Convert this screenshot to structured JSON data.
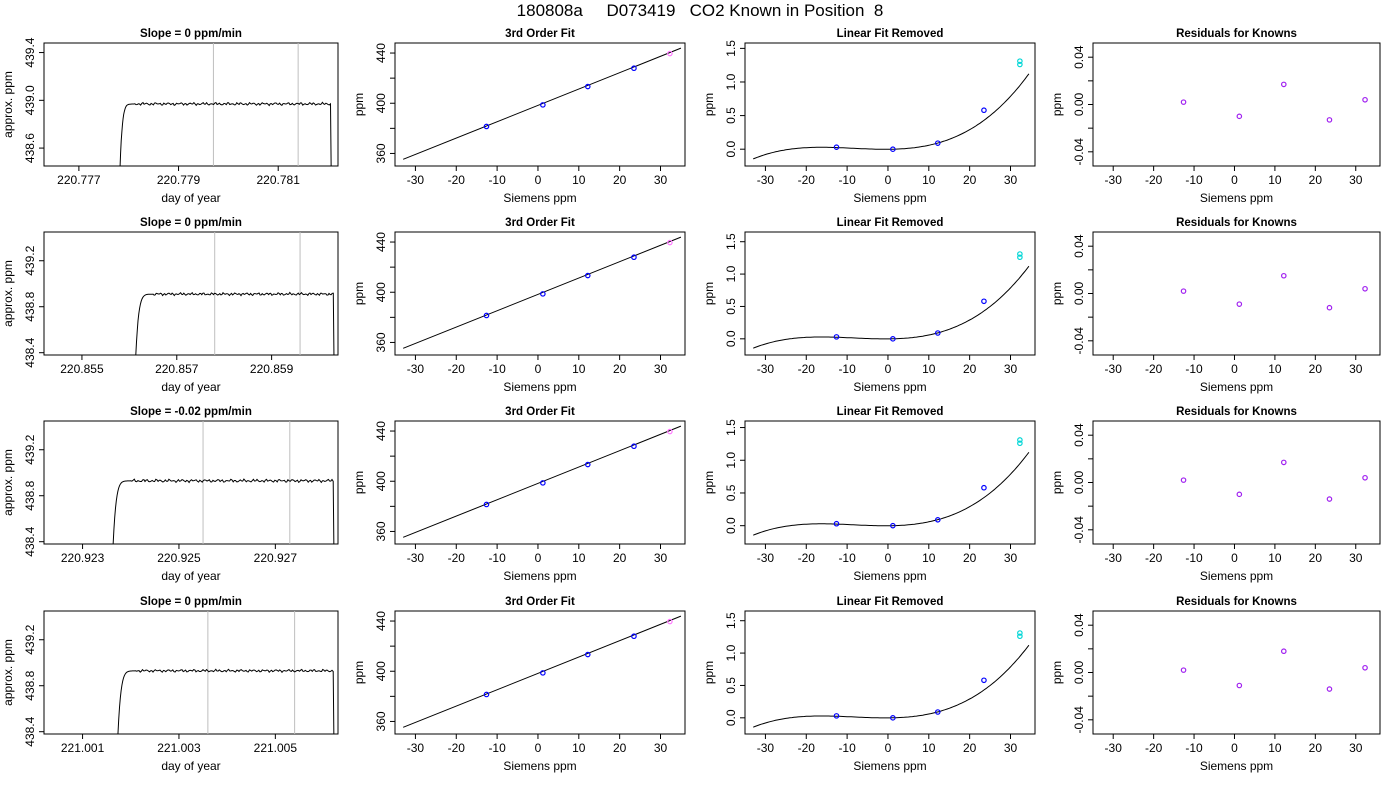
{
  "page": {
    "title": "180808a     D073419   CO2 Known in Position  8"
  },
  "rows": [
    {
      "slope_title": "Slope =  0  ppm/min",
      "raw_xlim": [
        220.7763,
        220.7822
      ],
      "raw_ylim": [
        438.45,
        439.48
      ],
      "raw_xticks": [
        220.777,
        220.779,
        220.781
      ],
      "raw_xticklabels": [
        "220.777",
        "220.779",
        "220.781"
      ],
      "raw_yticks": [
        438.6,
        439.0,
        439.4
      ],
      "raw_yticklabels": [
        "438.6",
        "439.0",
        "439.4"
      ],
      "raw_vlines": [
        220.7797,
        220.7814
      ],
      "trace_start": 220.7778,
      "trace_rise_end": 220.7781,
      "trace_end": 220.78205,
      "trace_level": 438.97,
      "trace_noise": 0.012,
      "lin_ylim": [
        -0.25,
        1.58
      ],
      "lin_yticks": [
        0.0,
        0.5,
        1.0,
        1.5
      ],
      "lin_yticklabels": [
        "0.0",
        "0.5",
        "1.0",
        "1.5"
      ],
      "resid_points": [
        [
          -12.6,
          0.002
        ],
        [
          1.2,
          -0.01
        ],
        [
          12.2,
          0.017
        ],
        [
          23.5,
          -0.013
        ],
        [
          32.3,
          0.004
        ]
      ]
    },
    {
      "slope_title": "Slope =  0  ppm/min",
      "raw_xlim": [
        220.8542,
        220.8604
      ],
      "raw_ylim": [
        438.38,
        439.45
      ],
      "raw_xticks": [
        220.855,
        220.857,
        220.859
      ],
      "raw_xticklabels": [
        "220.855",
        "220.857",
        "220.859"
      ],
      "raw_yticks": [
        438.4,
        438.8,
        439.2
      ],
      "raw_yticklabels": [
        "438.4",
        "438.8",
        "439.2"
      ],
      "raw_vlines": [
        220.8578,
        220.8596
      ],
      "trace_start": 220.8561,
      "trace_rise_end": 220.8565,
      "trace_end": 220.8603,
      "trace_level": 438.91,
      "trace_noise": 0.012,
      "lin_ylim": [
        -0.25,
        1.65
      ],
      "lin_yticks": [
        0.0,
        0.5,
        1.0,
        1.5
      ],
      "lin_yticklabels": [
        "0.0",
        "0.5",
        "1.0",
        "1.5"
      ],
      "resid_points": [
        [
          -12.6,
          0.002
        ],
        [
          1.2,
          -0.009
        ],
        [
          12.2,
          0.015
        ],
        [
          23.5,
          -0.012
        ],
        [
          32.3,
          0.004
        ]
      ]
    },
    {
      "slope_title": "Slope =  -0.02  ppm/min",
      "raw_xlim": [
        220.9222,
        220.9283
      ],
      "raw_ylim": [
        438.38,
        439.45
      ],
      "raw_xticks": [
        220.923,
        220.925,
        220.927
      ],
      "raw_xticklabels": [
        "220.923",
        "220.925",
        "220.927"
      ],
      "raw_yticks": [
        438.4,
        438.8,
        439.2
      ],
      "raw_yticklabels": [
        "438.4",
        "438.8",
        "439.2"
      ],
      "raw_vlines": [
        220.9255,
        220.9273
      ],
      "trace_start": 220.9236,
      "trace_rise_end": 220.924,
      "trace_end": 220.9282,
      "trace_level": 438.93,
      "trace_noise": 0.014,
      "lin_ylim": [
        -0.28,
        1.6
      ],
      "lin_yticks": [
        0.0,
        0.5,
        1.0,
        1.5
      ],
      "lin_yticklabels": [
        "0.0",
        "0.5",
        "1.0",
        "1.5"
      ],
      "resid_points": [
        [
          -12.6,
          0.002
        ],
        [
          1.2,
          -0.01
        ],
        [
          12.2,
          0.017
        ],
        [
          23.5,
          -0.014
        ],
        [
          32.3,
          0.004
        ]
      ]
    },
    {
      "slope_title": "Slope =  0  ppm/min",
      "raw_xlim": [
        221.0002,
        221.0063
      ],
      "raw_ylim": [
        438.38,
        439.45
      ],
      "raw_xticks": [
        221.001,
        221.003,
        221.005
      ],
      "raw_xticklabels": [
        "221.001",
        "221.003",
        "221.005"
      ],
      "raw_yticks": [
        438.4,
        438.8,
        439.2
      ],
      "raw_yticklabels": [
        "438.4",
        "438.8",
        "439.2"
      ],
      "raw_vlines": [
        221.0036,
        221.0054
      ],
      "trace_start": 221.0017,
      "trace_rise_end": 221.0021,
      "trace_end": 221.0062,
      "trace_level": 438.93,
      "trace_noise": 0.012,
      "lin_ylim": [
        -0.25,
        1.65
      ],
      "lin_yticks": [
        0.0,
        0.5,
        1.0,
        1.5
      ],
      "lin_yticklabels": [
        "0.0",
        "0.5",
        "1.0",
        "1.5"
      ],
      "resid_points": [
        [
          -12.6,
          0.002
        ],
        [
          1.2,
          -0.011
        ],
        [
          12.2,
          0.018
        ],
        [
          23.5,
          -0.014
        ],
        [
          32.3,
          0.004
        ]
      ]
    }
  ],
  "chart_data": [
    {
      "type": "line",
      "panel": "raw",
      "xlabel": "day of year",
      "ylabel": "approx. ppm",
      "grid": false
    },
    {
      "type": "scatter",
      "panel": "fit",
      "title": "3rd Order Fit",
      "xlabel": "Siemens ppm",
      "ylabel": "ppm",
      "xlim": [
        -35,
        36
      ],
      "ylim": [
        350,
        448
      ],
      "xticks": [
        -30,
        -20,
        -10,
        0,
        10,
        20,
        30
      ],
      "xticklabels": [
        "-30",
        "-20",
        "-10",
        "0",
        "10",
        "20",
        "30"
      ],
      "yticks": [
        360,
        400,
        440
      ],
      "yticklabels": [
        "360",
        "400",
        "440"
      ],
      "points": [
        [
          -12.6,
          381.5
        ],
        [
          1.2,
          398.7
        ],
        [
          12.2,
          413.3
        ],
        [
          23.5,
          427.9
        ],
        [
          32.3,
          439.6
        ]
      ],
      "line": [
        [
          -33,
          355.3
        ],
        [
          35,
          443.9
        ]
      ]
    },
    {
      "type": "scatter",
      "panel": "linear_removed",
      "title": "Linear Fit Removed",
      "xlabel": "Siemens ppm",
      "ylabel": "ppm",
      "xlim": [
        -35,
        36
      ],
      "xticks": [
        -30,
        -20,
        -10,
        0,
        10,
        20,
        30
      ],
      "xticklabels": [
        "-30",
        "-20",
        "-10",
        "0",
        "10",
        "20",
        "30"
      ],
      "points": [
        [
          -12.6,
          0.03
        ],
        [
          1.2,
          0.0
        ],
        [
          12.2,
          0.09
        ],
        [
          23.5,
          0.58
        ],
        [
          32.3,
          1.26
        ],
        [
          32.3,
          1.31
        ]
      ],
      "curve_range": [
        -33,
        34.8
      ]
    },
    {
      "type": "scatter",
      "panel": "residuals",
      "title": "Residuals for Knowns",
      "xlabel": "Siemens ppm",
      "ylabel": "ppm",
      "xlim": [
        -35,
        36
      ],
      "ylim": [
        -0.052,
        0.052
      ],
      "xticks": [
        -30,
        -20,
        -10,
        0,
        10,
        20,
        30
      ],
      "xticklabels": [
        "-30",
        "-20",
        "-10",
        "0",
        "10",
        "20",
        "30"
      ],
      "yticks": [
        -0.04,
        0.0,
        0.04
      ],
      "yticklabels": [
        "-0.04",
        "0.00",
        "0.04"
      ]
    }
  ],
  "colors": {
    "axis": "#000000",
    "vline": "#bebebe",
    "point_blue": "#0000ff",
    "point_purple": "#a020f0",
    "point_cyan": "#00d6d6",
    "point_pink": "#ff77ff"
  }
}
